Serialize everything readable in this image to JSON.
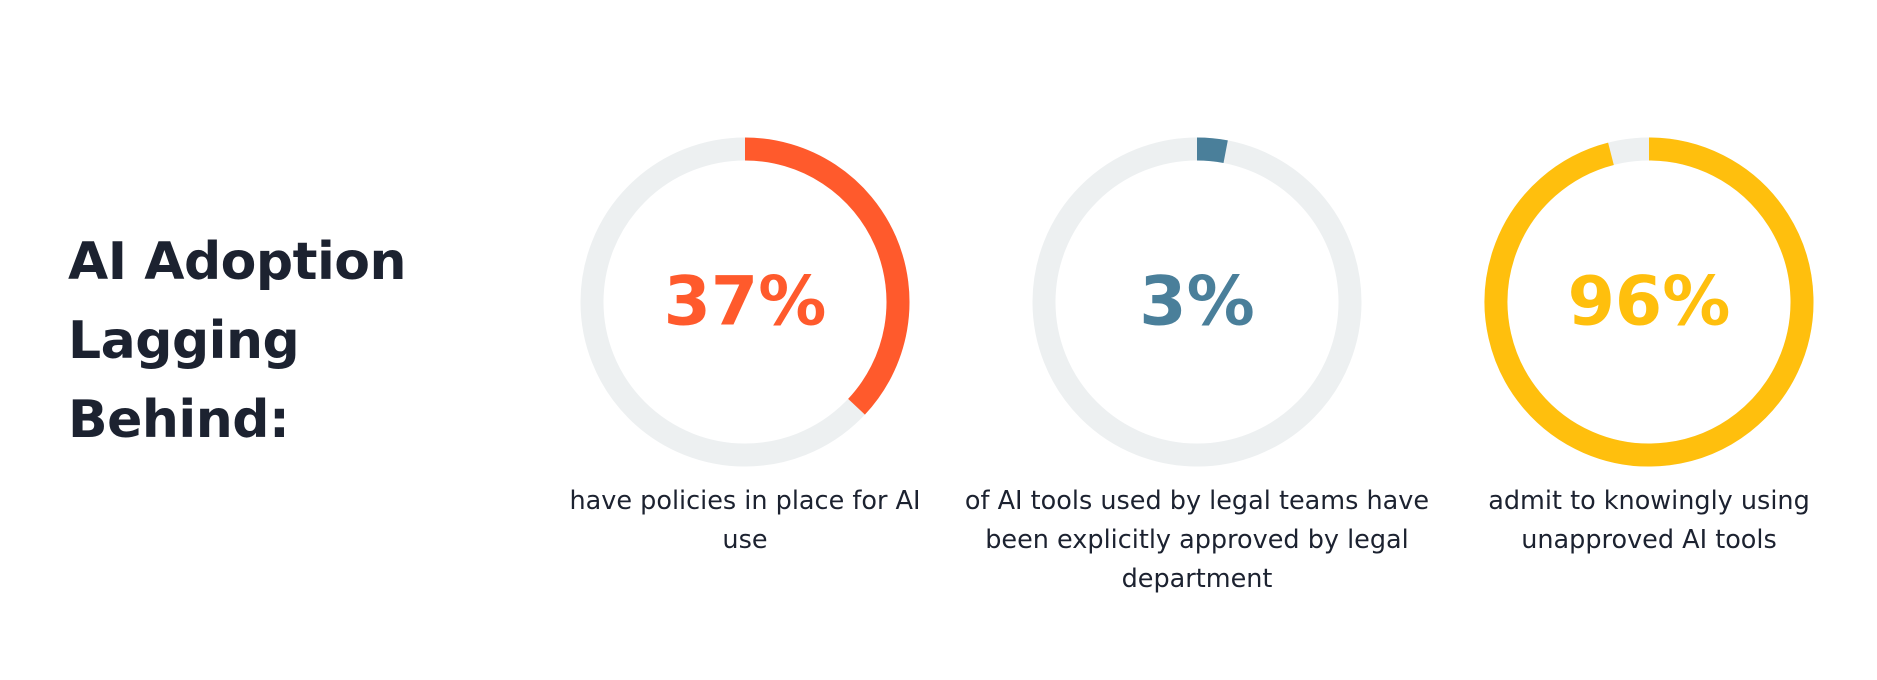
{
  "headline": {
    "lines": [
      "AI Adoption",
      "Lagging",
      "Behind:"
    ]
  },
  "colors": {
    "track": "#edf0f1",
    "text": "#1c2230"
  },
  "chart_data": [
    {
      "type": "pie",
      "value": 37,
      "value_label": "37%",
      "caption": "have policies in place for AI use",
      "color": "#ff5a2c"
    },
    {
      "type": "pie",
      "value": 3,
      "value_label": "3%",
      "caption": "of AI tools used by legal teams have been explicitly approved by legal department",
      "color": "#4a7f9a"
    },
    {
      "type": "pie",
      "value": 96,
      "value_label": "96%",
      "caption": "admit to knowingly using unapproved AI tools",
      "color": "#ffbf0d"
    }
  ]
}
